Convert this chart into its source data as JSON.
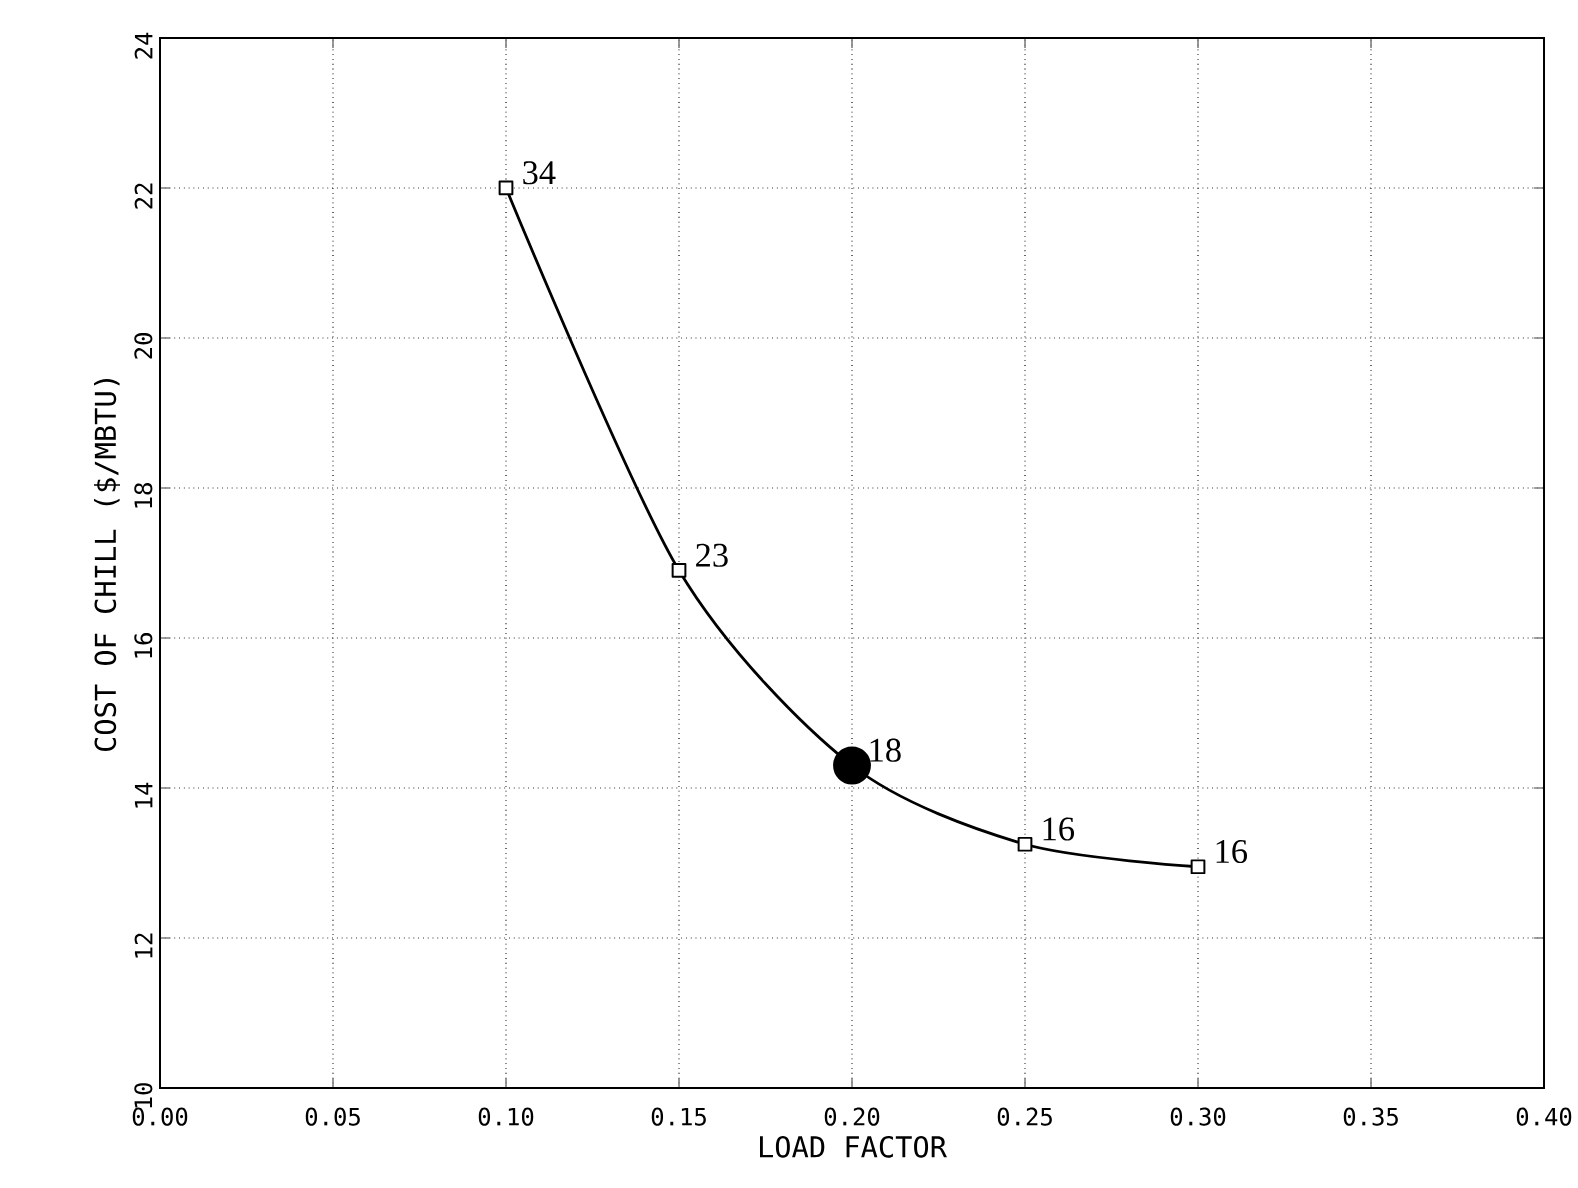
{
  "chart_data": {
    "type": "line",
    "xlabel": "LOAD FACTOR",
    "ylabel": "COST OF CHILL ($/MBTU)",
    "x": [
      0.1,
      0.15,
      0.2,
      0.25,
      0.3
    ],
    "series": [
      {
        "color": "#000000",
        "marker": "square",
        "values": [
          22.0,
          16.9,
          14.3,
          13.25,
          12.95
        ]
      },
      {
        "type": "scatter",
        "color": "#000000",
        "marker": "circle",
        "x": [
          0.2
        ],
        "values": [
          14.3
        ]
      }
    ],
    "xlim": [
      0,
      0.4
    ],
    "ylim": [
      10,
      24
    ],
    "xticks": [
      {
        "value": 0,
        "label": "0.00"
      },
      {
        "value": 0.05,
        "label": "0.05"
      },
      {
        "value": 0.1,
        "label": "0.10"
      },
      {
        "value": 0.15,
        "label": "0.15"
      },
      {
        "value": 0.2,
        "label": "0.20"
      },
      {
        "value": 0.25,
        "label": "0.25"
      },
      {
        "value": 0.3,
        "label": "0.30"
      },
      {
        "value": 0.35,
        "label": "0.35"
      },
      {
        "value": 0.4,
        "label": "0.40"
      }
    ],
    "yticks": [
      10,
      12,
      14,
      16,
      18,
      20,
      22,
      24
    ],
    "grid": true,
    "annotations": [
      {
        "text": "34",
        "x": 0.1,
        "y": 22.0
      },
      {
        "text": "23",
        "x": 0.15,
        "y": 16.9
      },
      {
        "text": "18",
        "x": 0.2,
        "y": 14.3
      },
      {
        "text": "16",
        "x": 0.25,
        "y": 13.25
      },
      {
        "text": "16",
        "x": 0.3,
        "y": 12.95
      }
    ]
  }
}
